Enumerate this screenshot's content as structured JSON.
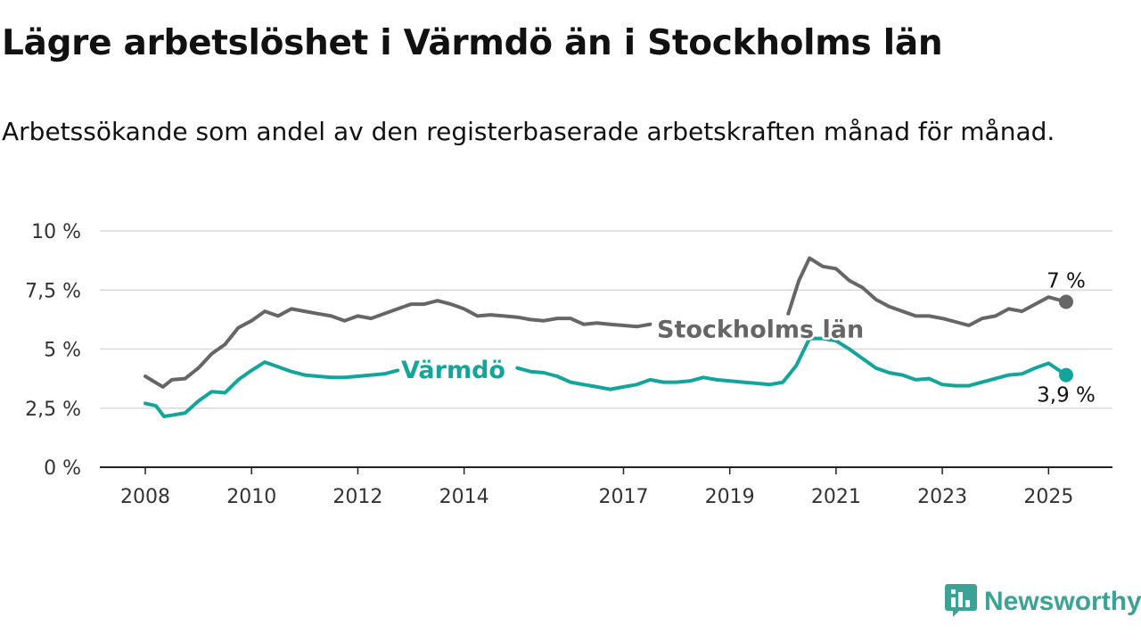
{
  "title": "Lägre arbetslöshet i Värmdö än i Stockholms län",
  "subtitle": "Arbetssökande som andel av den registerbaserade arbetskraften månad för månad.",
  "brand": {
    "name": "Newsworthy",
    "icon": "newsworthy-logo-icon"
  },
  "colors": {
    "stockholm": "#666666",
    "varmdo": "#13a59b",
    "grid": "#d9d9d9",
    "axis": "#222222"
  },
  "chart_data": {
    "type": "line",
    "title": "Lägre arbetslöshet i Värmdö än i Stockholms län",
    "xlabel": "",
    "ylabel": "",
    "xlim": [
      2008.0,
      2025.33
    ],
    "ylim": [
      0,
      10
    ],
    "grid": true,
    "legend": "inline labels",
    "y_ticks": [
      {
        "value": 0,
        "label": "0 %"
      },
      {
        "value": 2.5,
        "label": "2,5 %"
      },
      {
        "value": 5,
        "label": "5 %"
      },
      {
        "value": 7.5,
        "label": "7,5 %"
      },
      {
        "value": 10,
        "label": "10 %"
      }
    ],
    "x_ticks": [
      {
        "value": 2008,
        "label": "2008"
      },
      {
        "value": 2010,
        "label": "2010"
      },
      {
        "value": 2012,
        "label": "2012"
      },
      {
        "value": 2014,
        "label": "2014"
      },
      {
        "value": 2017,
        "label": "2017"
      },
      {
        "value": 2019,
        "label": "2019"
      },
      {
        "value": 2021,
        "label": "2021"
      },
      {
        "value": 2023,
        "label": "2023"
      },
      {
        "value": 2025,
        "label": "2025"
      }
    ],
    "series": [
      {
        "name": "Stockholms län",
        "color": "#666666",
        "end_label": "7 %",
        "points": [
          [
            2008.0,
            3.85
          ],
          [
            2008.33,
            3.4
          ],
          [
            2008.5,
            3.7
          ],
          [
            2008.75,
            3.75
          ],
          [
            2009.0,
            4.2
          ],
          [
            2009.25,
            4.8
          ],
          [
            2009.5,
            5.2
          ],
          [
            2009.75,
            5.9
          ],
          [
            2010.0,
            6.2
          ],
          [
            2010.25,
            6.6
          ],
          [
            2010.5,
            6.4
          ],
          [
            2010.75,
            6.7
          ],
          [
            2011.0,
            6.6
          ],
          [
            2011.25,
            6.5
          ],
          [
            2011.5,
            6.4
          ],
          [
            2011.75,
            6.2
          ],
          [
            2012.0,
            6.4
          ],
          [
            2012.25,
            6.3
          ],
          [
            2012.5,
            6.5
          ],
          [
            2012.75,
            6.7
          ],
          [
            2013.0,
            6.9
          ],
          [
            2013.25,
            6.9
          ],
          [
            2013.5,
            7.05
          ],
          [
            2013.75,
            6.9
          ],
          [
            2014.0,
            6.7
          ],
          [
            2014.25,
            6.4
          ],
          [
            2014.5,
            6.45
          ],
          [
            2014.75,
            6.4
          ],
          [
            2015.0,
            6.35
          ],
          [
            2015.25,
            6.25
          ],
          [
            2015.5,
            6.2
          ],
          [
            2015.75,
            6.3
          ],
          [
            2016.0,
            6.3
          ],
          [
            2016.25,
            6.05
          ],
          [
            2016.5,
            6.1
          ],
          [
            2016.75,
            6.05
          ],
          [
            2017.0,
            6.0
          ],
          [
            2017.25,
            5.95
          ],
          [
            2017.5,
            6.05
          ]
        ],
        "points_after_label": [
          [
            2020.1,
            6.5
          ],
          [
            2020.3,
            7.9
          ],
          [
            2020.5,
            8.85
          ],
          [
            2020.75,
            8.5
          ],
          [
            2021.0,
            8.4
          ],
          [
            2021.25,
            7.9
          ],
          [
            2021.5,
            7.6
          ],
          [
            2021.75,
            7.1
          ],
          [
            2022.0,
            6.8
          ],
          [
            2022.25,
            6.6
          ],
          [
            2022.5,
            6.4
          ],
          [
            2022.75,
            6.4
          ],
          [
            2023.0,
            6.3
          ],
          [
            2023.25,
            6.15
          ],
          [
            2023.5,
            6.0
          ],
          [
            2023.75,
            6.3
          ],
          [
            2024.0,
            6.4
          ],
          [
            2024.25,
            6.7
          ],
          [
            2024.5,
            6.6
          ],
          [
            2024.75,
            6.9
          ],
          [
            2025.0,
            7.2
          ],
          [
            2025.33,
            7.0
          ]
        ]
      },
      {
        "name": "Värmdö",
        "color": "#13a59b",
        "end_label": "3,9 %",
        "points": [
          [
            2008.0,
            2.7
          ],
          [
            2008.2,
            2.6
          ],
          [
            2008.35,
            2.15
          ],
          [
            2008.5,
            2.2
          ],
          [
            2008.75,
            2.3
          ],
          [
            2009.0,
            2.8
          ],
          [
            2009.25,
            3.2
          ],
          [
            2009.5,
            3.15
          ],
          [
            2009.75,
            3.7
          ],
          [
            2010.0,
            4.1
          ],
          [
            2010.25,
            4.45
          ],
          [
            2010.5,
            4.25
          ],
          [
            2010.75,
            4.05
          ],
          [
            2011.0,
            3.9
          ],
          [
            2011.25,
            3.85
          ],
          [
            2011.5,
            3.8
          ],
          [
            2011.75,
            3.8
          ],
          [
            2012.0,
            3.85
          ],
          [
            2012.25,
            3.9
          ],
          [
            2012.5,
            3.95
          ],
          [
            2012.75,
            4.1
          ]
        ],
        "points_after_label": [
          [
            2015.0,
            4.2
          ],
          [
            2015.25,
            4.05
          ],
          [
            2015.5,
            4.0
          ],
          [
            2015.75,
            3.85
          ],
          [
            2016.0,
            3.6
          ],
          [
            2016.25,
            3.5
          ],
          [
            2016.5,
            3.4
          ],
          [
            2016.75,
            3.3
          ],
          [
            2017.0,
            3.4
          ],
          [
            2017.25,
            3.5
          ],
          [
            2017.5,
            3.7
          ],
          [
            2017.75,
            3.6
          ],
          [
            2018.0,
            3.6
          ],
          [
            2018.25,
            3.65
          ],
          [
            2018.5,
            3.8
          ],
          [
            2018.75,
            3.7
          ],
          [
            2019.0,
            3.65
          ],
          [
            2019.25,
            3.6
          ],
          [
            2019.5,
            3.55
          ],
          [
            2019.75,
            3.5
          ],
          [
            2020.0,
            3.6
          ],
          [
            2020.25,
            4.3
          ],
          [
            2020.5,
            5.45
          ],
          [
            2020.75,
            5.45
          ],
          [
            2021.0,
            5.35
          ],
          [
            2021.25,
            5.0
          ],
          [
            2021.5,
            4.6
          ],
          [
            2021.75,
            4.2
          ],
          [
            2022.0,
            4.0
          ],
          [
            2022.25,
            3.9
          ],
          [
            2022.5,
            3.7
          ],
          [
            2022.75,
            3.75
          ],
          [
            2023.0,
            3.5
          ],
          [
            2023.25,
            3.45
          ],
          [
            2023.5,
            3.45
          ],
          [
            2023.75,
            3.6
          ],
          [
            2024.0,
            3.75
          ],
          [
            2024.25,
            3.9
          ],
          [
            2024.5,
            3.95
          ],
          [
            2024.75,
            4.2
          ],
          [
            2025.0,
            4.4
          ],
          [
            2025.33,
            3.9
          ]
        ]
      }
    ]
  }
}
